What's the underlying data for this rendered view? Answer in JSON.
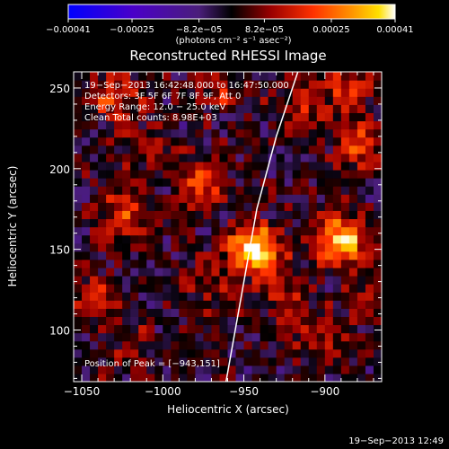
{
  "chart_data": {
    "type": "heatmap",
    "title": "Reconstructed RHESSI Image",
    "xlabel": "Heliocentric X (arcsec)",
    "ylabel": "Heliocentric Y (arcsec)",
    "xlim": [
      -1055,
      -865
    ],
    "ylim": [
      68,
      260
    ],
    "xticks": [
      -1050,
      -1000,
      -950,
      -900
    ],
    "xtick_labels": [
      "−1050",
      "−1000",
      "−950",
      "−900"
    ],
    "yticks": [
      100,
      150,
      200,
      250
    ],
    "ytick_labels": [
      "100",
      "150",
      "200",
      "250"
    ],
    "colorbar": {
      "min": -0.00041,
      "max": 0.00041,
      "ticks": [
        -0.00041,
        -0.00025,
        -8.2e-05,
        8.2e-05,
        0.00025,
        0.00041
      ],
      "tick_labels": [
        "−0.00041",
        "−0.00025",
        "−8.2e−05",
        "8.2e−05",
        "0.00025",
        "0.00041"
      ],
      "units_label": "(photons cm⁻² s⁻¹ asec⁻²)"
    },
    "annotations": [
      "19−Sep−2013 16:42:48.000 to 16:47:50.000",
      "Detectors: 3F 5F 6F 7F 8F 9F, Att 0",
      "Energy Range: 12.0 − 25.0 keV",
      "Clean     Total counts: 8.98E+03"
    ],
    "peak_label": "Position of Peak = [−943,151]",
    "peak_position": [
      -943,
      151
    ],
    "sources": [
      {
        "x": -943,
        "y": 151,
        "amp": 0.00041
      },
      {
        "x": -890,
        "y": 156,
        "amp": 0.00037
      },
      {
        "x": -975,
        "y": 190,
        "amp": 0.0002
      },
      {
        "x": -1025,
        "y": 172,
        "amp": 0.00019
      },
      {
        "x": -1030,
        "y": 245,
        "amp": 0.00018
      },
      {
        "x": -880,
        "y": 215,
        "amp": 0.0002
      },
      {
        "x": -885,
        "y": 250,
        "amp": 0.00016
      },
      {
        "x": -965,
        "y": 250,
        "amp": 0.00012
      },
      {
        "x": -1010,
        "y": 215,
        "amp": 0.0001
      },
      {
        "x": -1040,
        "y": 120,
        "amp": 0.00013
      },
      {
        "x": -970,
        "y": 128,
        "amp": 9e-05
      },
      {
        "x": -905,
        "y": 95,
        "amp": 0.00012
      },
      {
        "x": -1015,
        "y": 90,
        "amp": 8e-05
      },
      {
        "x": -925,
        "y": 120,
        "amp": 0.00012
      },
      {
        "x": -870,
        "y": 120,
        "amp": 0.00014
      },
      {
        "x": -915,
        "y": 240,
        "amp": 0.00014
      }
    ],
    "limb_curve": [
      {
        "x": -961,
        "y": 68
      },
      {
        "x": -950,
        "y": 130
      },
      {
        "x": -942,
        "y": 175
      },
      {
        "x": -930,
        "y": 220
      },
      {
        "x": -916,
        "y": 262
      }
    ]
  },
  "footer_timestamp": "19−Sep−2013 12:49"
}
